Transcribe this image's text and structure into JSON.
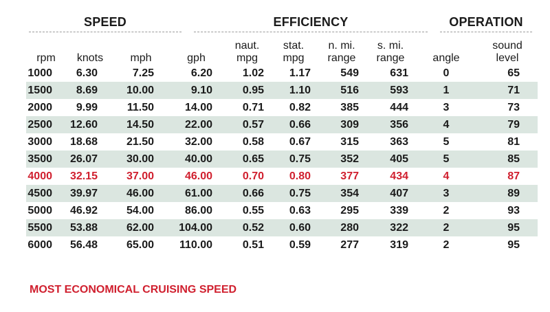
{
  "groups": {
    "speed": "SPEED",
    "efficiency": "EFFICIENCY",
    "operation": "OPERATION"
  },
  "columns": [
    "rpm",
    "knots",
    "mph",
    "gph",
    "naut.\nmpg",
    "stat.\nmpg",
    "n. mi.\nrange",
    "s. mi.\nrange",
    "angle",
    "sound\nlevel"
  ],
  "rows": [
    {
      "cells": [
        "1000",
        "6.30",
        "7.25",
        "6.20",
        "1.02",
        "1.17",
        "549",
        "631",
        "0",
        "65"
      ],
      "shaded": false,
      "highlight": false
    },
    {
      "cells": [
        "1500",
        "8.69",
        "10.00",
        "9.10",
        "0.95",
        "1.10",
        "516",
        "593",
        "1",
        "71"
      ],
      "shaded": true,
      "highlight": false
    },
    {
      "cells": [
        "2000",
        "9.99",
        "11.50",
        "14.00",
        "0.71",
        "0.82",
        "385",
        "444",
        "3",
        "73"
      ],
      "shaded": false,
      "highlight": false
    },
    {
      "cells": [
        "2500",
        "12.60",
        "14.50",
        "22.00",
        "0.57",
        "0.66",
        "309",
        "356",
        "4",
        "79"
      ],
      "shaded": true,
      "highlight": false
    },
    {
      "cells": [
        "3000",
        "18.68",
        "21.50",
        "32.00",
        "0.58",
        "0.67",
        "315",
        "363",
        "5",
        "81"
      ],
      "shaded": false,
      "highlight": false
    },
    {
      "cells": [
        "3500",
        "26.07",
        "30.00",
        "40.00",
        "0.65",
        "0.75",
        "352",
        "405",
        "5",
        "85"
      ],
      "shaded": true,
      "highlight": false
    },
    {
      "cells": [
        "4000",
        "32.15",
        "37.00",
        "46.00",
        "0.70",
        "0.80",
        "377",
        "434",
        "4",
        "87"
      ],
      "shaded": false,
      "highlight": true
    },
    {
      "cells": [
        "4500",
        "39.97",
        "46.00",
        "61.00",
        "0.66",
        "0.75",
        "354",
        "407",
        "3",
        "89"
      ],
      "shaded": true,
      "highlight": false
    },
    {
      "cells": [
        "5000",
        "46.92",
        "54.00",
        "86.00",
        "0.55",
        "0.63",
        "295",
        "339",
        "2",
        "93"
      ],
      "shaded": false,
      "highlight": false
    },
    {
      "cells": [
        "5500",
        "53.88",
        "62.00",
        "104.00",
        "0.52",
        "0.60",
        "280",
        "322",
        "2",
        "95"
      ],
      "shaded": true,
      "highlight": false
    },
    {
      "cells": [
        "6000",
        "56.48",
        "65.00",
        "110.00",
        "0.51",
        "0.59",
        "277",
        "319",
        "2",
        "95"
      ],
      "shaded": false,
      "highlight": false
    }
  ],
  "note": "MOST ECONOMICAL CRUISING SPEED",
  "colors": {
    "highlight_text": "#d01f2e",
    "row_shade": "#dbe6e0",
    "text": "#1a1a1a"
  }
}
